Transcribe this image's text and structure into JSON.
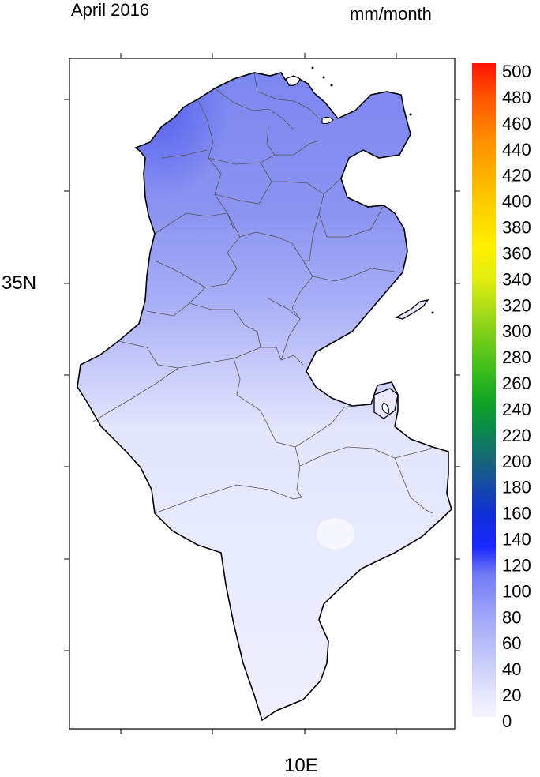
{
  "map": {
    "title": "April 2016",
    "units": "mm/month",
    "y_ticks": [
      {
        "label": "35N"
      }
    ],
    "x_ticks": [
      {
        "label": "10E"
      }
    ],
    "region": "Tunisia",
    "variable": "precipitation"
  },
  "colorbar": {
    "min": 0,
    "max": 500,
    "labels": [
      "500",
      "480",
      "460",
      "440",
      "420",
      "400",
      "380",
      "360",
      "340",
      "320",
      "300",
      "280",
      "260",
      "240",
      "220",
      "200",
      "180",
      "160",
      "140",
      "120",
      "100",
      "80",
      "60",
      "40",
      "20",
      "0"
    ],
    "colors": [
      "#f2f2ff",
      "#e0e1fc",
      "#c8cbfa",
      "#aeb2f8",
      "#8f95f6",
      "#6e76f4",
      "#3342f5",
      "#0a1cff",
      "#1032d4",
      "#1446b6",
      "#16589c",
      "#186a84",
      "#0f7f5a",
      "#0e9a2a",
      "#22b01e",
      "#5ac21a",
      "#8ed219",
      "#c4e015",
      "#f2ef10",
      "#fff200",
      "#ffd200",
      "#ffaf00",
      "#ff8a00",
      "#ff6600",
      "#ff3800",
      "#ff1500"
    ]
  },
  "colors": {
    "north": "#7f88f0",
    "central": "#b8bdf7",
    "south": "#e8e9fe",
    "outline": "#000000",
    "governorate_border": "#555555"
  }
}
